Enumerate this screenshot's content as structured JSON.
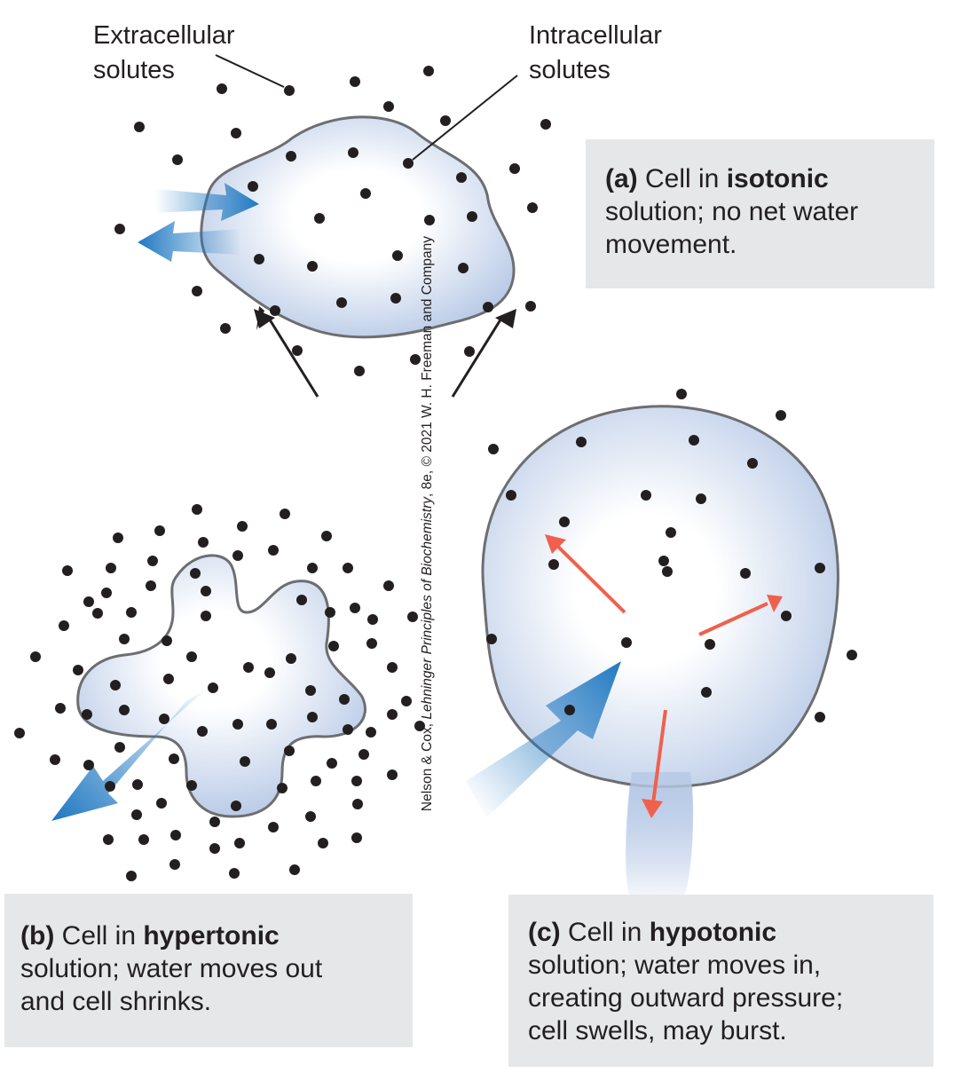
{
  "labels": {
    "extracellular": [
      "Extracellular",
      "solutes"
    ],
    "intracellular": [
      "Intracellular",
      "solutes"
    ]
  },
  "panels": {
    "a": {
      "letter": "(a)",
      "pre": " Cell in ",
      "bold": "isotonic",
      "post": [
        "solution; no net water",
        "movement."
      ]
    },
    "b": {
      "letter": "(b)",
      "pre": " Cell in ",
      "bold": "hypertonic",
      "post": [
        "solution; water moves out",
        "and cell shrinks."
      ]
    },
    "c": {
      "letter": "(c)",
      "pre": " Cell in ",
      "bold": "hypotonic",
      "post": [
        "solution; water moves in,",
        "creating outward pressure;",
        "cell swells, may burst."
      ]
    }
  },
  "credit": {
    "pre": "Nelson & Cox, ",
    "title": "Lehninger Principles of Biochemistry",
    "post": ", 8e, © 2021 W. H. Freeman and Company"
  },
  "colors": {
    "cell_fill_edge": "#b9cbe6",
    "cell_outline": "#6d6e71",
    "water_arrow": "#1f78c1",
    "pressure_arrow": "#f0604d",
    "caption_bg": "#e6e7e8",
    "solute": "#231f20"
  }
}
